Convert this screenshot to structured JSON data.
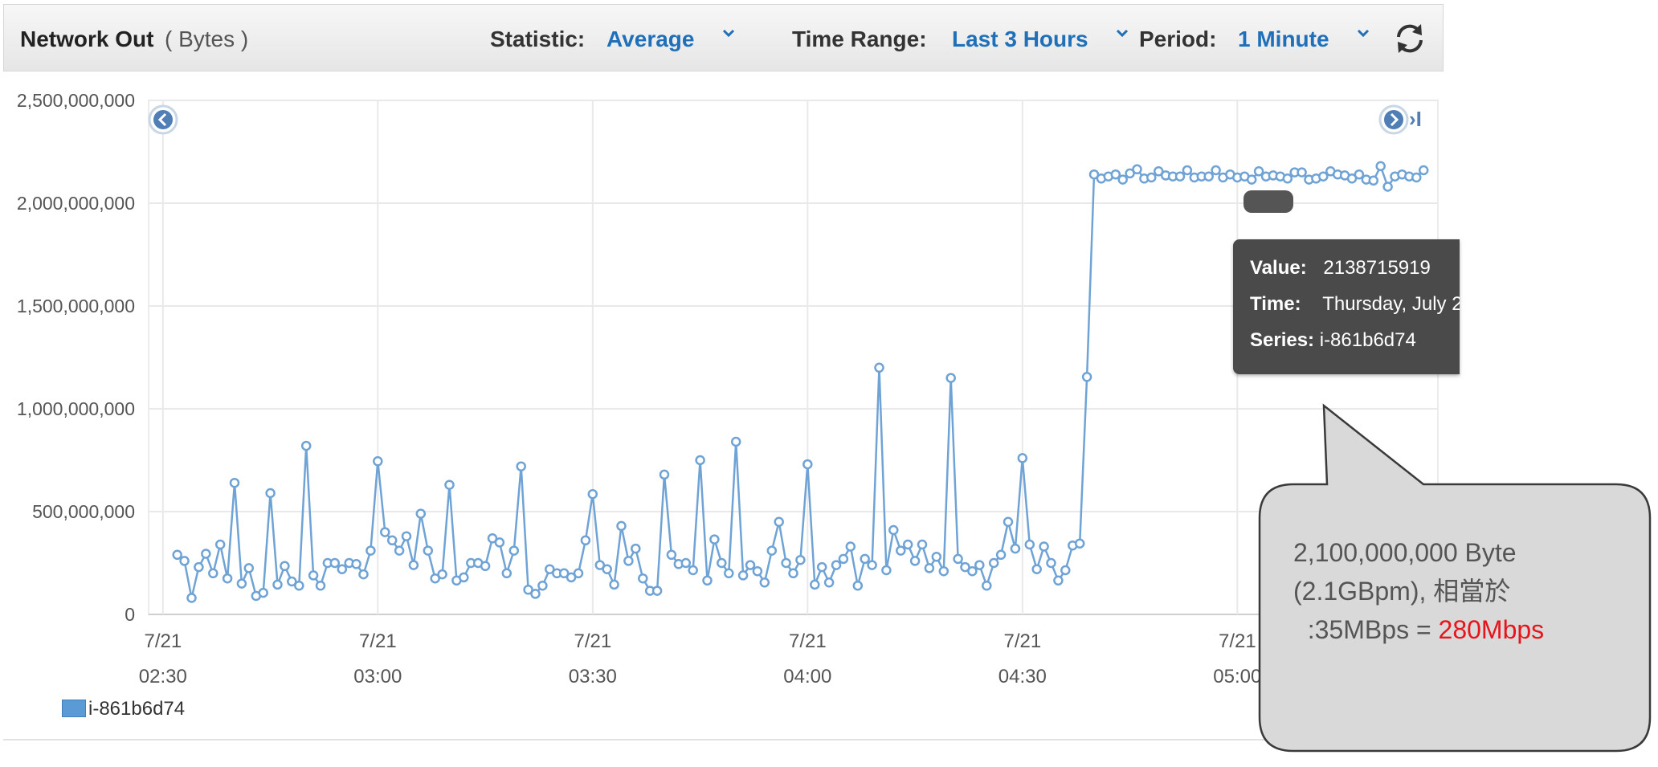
{
  "header": {
    "title": "Network Out",
    "unit": "( Bytes )",
    "statistic_label": "Statistic:",
    "statistic_value": "Average",
    "time_range_label": "Time Range:",
    "time_range_value": "Last 3 Hours",
    "period_label": "Period:",
    "period_value": "1 Minute",
    "refresh_icon": "refresh-icon",
    "chevron_icon": "chevron-down-icon"
  },
  "chart_data": {
    "type": "line",
    "ylim": [
      0,
      2500000000
    ],
    "y_ticks": [
      {
        "value": 0,
        "label": "0"
      },
      {
        "value": 500000000,
        "label": "500,000,000"
      },
      {
        "value": 1000000000,
        "label": "1,000,000,000"
      },
      {
        "value": 1500000000,
        "label": "1,500,000,000"
      },
      {
        "value": 2000000000,
        "label": "2,000,000,000"
      },
      {
        "value": 2500000000,
        "label": "2,500,000,000"
      }
    ],
    "x_range": [
      "02:28",
      "05:28"
    ],
    "x_ticks": [
      {
        "time": "02:30",
        "date": "7/21"
      },
      {
        "time": "03:00",
        "date": "7/21"
      },
      {
        "time": "03:30",
        "date": "7/21"
      },
      {
        "time": "04:00",
        "date": "7/21"
      },
      {
        "time": "04:30",
        "date": "7/21"
      },
      {
        "time": "05:00",
        "date": "7/21"
      }
    ],
    "grid": true,
    "series_color": "#6fa3d6",
    "series": [
      {
        "name": "i-861b6d74",
        "points": [
          [
            "02:32",
            290000000
          ],
          [
            "02:33",
            260000000
          ],
          [
            "02:34",
            80000000
          ],
          [
            "02:35",
            230000000
          ],
          [
            "02:36",
            295000000
          ],
          [
            "02:37",
            200000000
          ],
          [
            "02:38",
            340000000
          ],
          [
            "02:39",
            175000000
          ],
          [
            "02:40",
            640000000
          ],
          [
            "02:41",
            150000000
          ],
          [
            "02:42",
            225000000
          ],
          [
            "02:43",
            90000000
          ],
          [
            "02:44",
            105000000
          ],
          [
            "02:45",
            590000000
          ],
          [
            "02:46",
            145000000
          ],
          [
            "02:47",
            235000000
          ],
          [
            "02:48",
            160000000
          ],
          [
            "02:49",
            140000000
          ],
          [
            "02:50",
            820000000
          ],
          [
            "02:51",
            190000000
          ],
          [
            "02:52",
            140000000
          ],
          [
            "02:53",
            250000000
          ],
          [
            "02:54",
            250000000
          ],
          [
            "02:55",
            220000000
          ],
          [
            "02:56",
            250000000
          ],
          [
            "02:57",
            245000000
          ],
          [
            "02:58",
            195000000
          ],
          [
            "02:59",
            310000000
          ],
          [
            "03:00",
            745000000
          ],
          [
            "03:01",
            400000000
          ],
          [
            "03:02",
            360000000
          ],
          [
            "03:03",
            310000000
          ],
          [
            "03:04",
            380000000
          ],
          [
            "03:05",
            240000000
          ],
          [
            "03:06",
            490000000
          ],
          [
            "03:07",
            310000000
          ],
          [
            "03:08",
            175000000
          ],
          [
            "03:09",
            195000000
          ],
          [
            "03:10",
            630000000
          ],
          [
            "03:11",
            165000000
          ],
          [
            "03:12",
            180000000
          ],
          [
            "03:13",
            250000000
          ],
          [
            "03:14",
            250000000
          ],
          [
            "03:15",
            235000000
          ],
          [
            "03:16",
            370000000
          ],
          [
            "03:17",
            350000000
          ],
          [
            "03:18",
            200000000
          ],
          [
            "03:19",
            310000000
          ],
          [
            "03:20",
            720000000
          ],
          [
            "03:21",
            120000000
          ],
          [
            "03:22",
            100000000
          ],
          [
            "03:23",
            140000000
          ],
          [
            "03:24",
            220000000
          ],
          [
            "03:25",
            200000000
          ],
          [
            "03:26",
            200000000
          ],
          [
            "03:27",
            180000000
          ],
          [
            "03:28",
            200000000
          ],
          [
            "03:29",
            360000000
          ],
          [
            "03:30",
            585000000
          ],
          [
            "03:31",
            240000000
          ],
          [
            "03:32",
            220000000
          ],
          [
            "03:33",
            145000000
          ],
          [
            "03:34",
            430000000
          ],
          [
            "03:35",
            260000000
          ],
          [
            "03:36",
            320000000
          ],
          [
            "03:37",
            175000000
          ],
          [
            "03:38",
            115000000
          ],
          [
            "03:39",
            115000000
          ],
          [
            "03:40",
            680000000
          ],
          [
            "03:41",
            290000000
          ],
          [
            "03:42",
            245000000
          ],
          [
            "03:43",
            250000000
          ],
          [
            "03:44",
            215000000
          ],
          [
            "03:45",
            750000000
          ],
          [
            "03:46",
            165000000
          ],
          [
            "03:47",
            365000000
          ],
          [
            "03:48",
            250000000
          ],
          [
            "03:49",
            200000000
          ],
          [
            "03:50",
            840000000
          ],
          [
            "03:51",
            190000000
          ],
          [
            "03:52",
            240000000
          ],
          [
            "03:53",
            210000000
          ],
          [
            "03:54",
            155000000
          ],
          [
            "03:55",
            310000000
          ],
          [
            "03:56",
            450000000
          ],
          [
            "03:57",
            250000000
          ],
          [
            "03:58",
            200000000
          ],
          [
            "03:59",
            265000000
          ],
          [
            "04:00",
            730000000
          ],
          [
            "04:01",
            145000000
          ],
          [
            "04:02",
            230000000
          ],
          [
            "04:03",
            155000000
          ],
          [
            "04:04",
            240000000
          ],
          [
            "04:05",
            270000000
          ],
          [
            "04:06",
            330000000
          ],
          [
            "04:07",
            140000000
          ],
          [
            "04:08",
            270000000
          ],
          [
            "04:09",
            240000000
          ],
          [
            "04:10",
            1200000000
          ],
          [
            "04:11",
            215000000
          ],
          [
            "04:12",
            410000000
          ],
          [
            "04:13",
            310000000
          ],
          [
            "04:14",
            340000000
          ],
          [
            "04:15",
            260000000
          ],
          [
            "04:16",
            340000000
          ],
          [
            "04:17",
            225000000
          ],
          [
            "04:18",
            280000000
          ],
          [
            "04:19",
            210000000
          ],
          [
            "04:20",
            1150000000
          ],
          [
            "04:21",
            270000000
          ],
          [
            "04:22",
            230000000
          ],
          [
            "04:23",
            210000000
          ],
          [
            "04:24",
            240000000
          ],
          [
            "04:25",
            140000000
          ],
          [
            "04:26",
            250000000
          ],
          [
            "04:27",
            290000000
          ],
          [
            "04:28",
            450000000
          ],
          [
            "04:29",
            320000000
          ],
          [
            "04:30",
            760000000
          ],
          [
            "04:31",
            340000000
          ],
          [
            "04:32",
            220000000
          ],
          [
            "04:33",
            330000000
          ],
          [
            "04:34",
            250000000
          ],
          [
            "04:35",
            165000000
          ],
          [
            "04:36",
            215000000
          ],
          [
            "04:37",
            335000000
          ],
          [
            "04:38",
            345000000
          ],
          [
            "04:39",
            1155000000
          ],
          [
            "04:40",
            2140000000
          ],
          [
            "04:41",
            2120000000
          ],
          [
            "04:42",
            2130000000
          ],
          [
            "04:43",
            2140000000
          ],
          [
            "04:44",
            2115000000
          ],
          [
            "04:45",
            2145000000
          ],
          [
            "04:46",
            2165000000
          ],
          [
            "04:47",
            2120000000
          ],
          [
            "04:48",
            2125000000
          ],
          [
            "04:49",
            2155000000
          ],
          [
            "04:50",
            2135000000
          ],
          [
            "04:51",
            2130000000
          ],
          [
            "04:52",
            2130000000
          ],
          [
            "04:53",
            2160000000
          ],
          [
            "04:54",
            2125000000
          ],
          [
            "04:55",
            2130000000
          ],
          [
            "04:56",
            2130000000
          ],
          [
            "04:57",
            2160000000
          ],
          [
            "04:58",
            2125000000
          ],
          [
            "04:59",
            2140000000
          ],
          [
            "05:00",
            2125000000
          ],
          [
            "05:01",
            2130000000
          ],
          [
            "05:02",
            2115000000
          ],
          [
            "05:03",
            2155000000
          ],
          [
            "05:04",
            2130000000
          ],
          [
            "05:05",
            2135000000
          ],
          [
            "05:06",
            2130000000
          ],
          [
            "05:07",
            2120000000
          ],
          [
            "05:08",
            2150000000
          ],
          [
            "05:09",
            2150000000
          ],
          [
            "05:10",
            2115000000
          ],
          [
            "05:11",
            2120000000
          ],
          [
            "05:12",
            2130000000
          ],
          [
            "05:13",
            2155000000
          ],
          [
            "05:14",
            2140000000
          ],
          [
            "05:15",
            2135000000
          ],
          [
            "05:16",
            2120000000
          ],
          [
            "05:17",
            2140000000
          ],
          [
            "05:18",
            2115000000
          ],
          [
            "05:19",
            2110000000
          ],
          [
            "05:20",
            2180000000
          ],
          [
            "05:21",
            2080000000
          ],
          [
            "05:22",
            2130000000
          ],
          [
            "05:23",
            2140000000
          ],
          [
            "05:24",
            2130000000
          ],
          [
            "05:25",
            2125000000
          ],
          [
            "05:26",
            2160000000
          ]
        ]
      }
    ]
  },
  "nav": {
    "prev_icon": "chevron-left-circle-icon",
    "next_icon": "chevron-right-circle-icon",
    "end_icon": "skip-to-end-icon",
    "end_glyph": "›I"
  },
  "tooltip": {
    "value_label": "Value:",
    "value": "2138715919",
    "time_label": "Time:",
    "time": "Thursday, July 2",
    "series_label": "Series:",
    "series": "i-861b6d74"
  },
  "legend": {
    "label": "i-861b6d74",
    "color": "#5b9bd5"
  },
  "callout": {
    "line1": "2,100,000,000 Byte",
    "line2": "(2.1GBpm), 相當於",
    "line3_prefix": "  :35MBps = ",
    "line3_highlight": "280Mbps",
    "highlight_color": "#e8141b"
  }
}
